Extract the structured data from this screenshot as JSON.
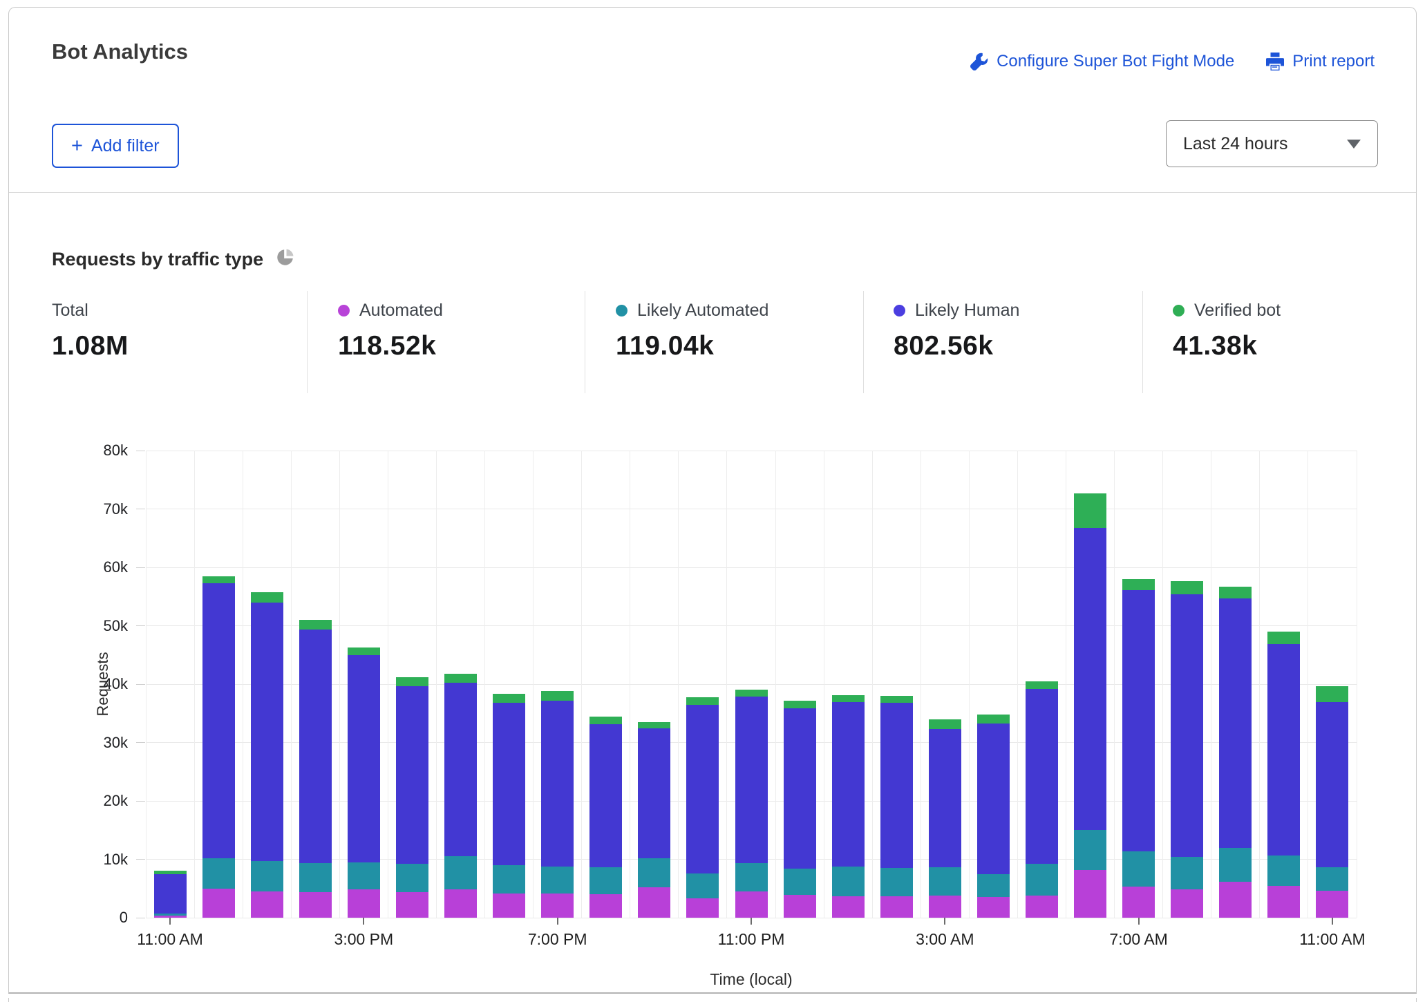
{
  "header": {
    "title": "Bot Analytics",
    "configure_link": "Configure Super Bot Fight Mode",
    "print_link": "Print report"
  },
  "filters": {
    "add_filter_label": "Add filter",
    "add_filter_plus": "+",
    "time_range_value": "Last 24 hours"
  },
  "section": {
    "title": "Requests by traffic type"
  },
  "stats": {
    "items": [
      {
        "label": "Total",
        "value": "1.08M",
        "dot_color": null
      },
      {
        "label": "Automated",
        "value": "118.52k",
        "dot_color": "#b843d8"
      },
      {
        "label": "Likely Automated",
        "value": "119.04k",
        "dot_color": "#2191a5"
      },
      {
        "label": "Likely Human",
        "value": "802.56k",
        "dot_color": "#4b3ee0"
      },
      {
        "label": "Verified bot",
        "value": "41.38k",
        "dot_color": "#2fae55"
      }
    ]
  },
  "chart_data": {
    "type": "bar",
    "stacked": true,
    "title": "Requests by traffic type",
    "xlabel": "Time (local)",
    "ylabel": "Requests",
    "ylim": [
      0,
      80000
    ],
    "grid": true,
    "unit": "thousands of requests",
    "yticks": [
      "0",
      "10k",
      "20k",
      "30k",
      "40k",
      "50k",
      "60k",
      "70k",
      "80k"
    ],
    "tick_every": 4,
    "x": [
      "11:00 AM",
      "12:00 PM",
      "1:00 PM",
      "2:00 PM",
      "3:00 PM",
      "4:00 PM",
      "5:00 PM",
      "6:00 PM",
      "7:00 PM",
      "8:00 PM",
      "9:00 PM",
      "10:00 PM",
      "11:00 PM",
      "12:00 AM",
      "1:00 AM",
      "2:00 AM",
      "3:00 AM",
      "4:00 AM",
      "5:00 AM",
      "6:00 AM",
      "7:00 AM",
      "8:00 AM",
      "9:00 AM",
      "10:00 AM",
      "11:00 AM"
    ],
    "series": [
      {
        "name": "Automated",
        "color": "#b840d8",
        "values": [
          0.3,
          5.0,
          4.5,
          4.4,
          4.8,
          4.4,
          4.8,
          4.1,
          4.2,
          4.0,
          5.2,
          3.3,
          4.5,
          3.9,
          3.7,
          3.7,
          3.8,
          3.6,
          3.8,
          8.2,
          5.3,
          4.9,
          6.1,
          5.4,
          4.6
        ]
      },
      {
        "name": "Likely Automated",
        "color": "#2191a5",
        "values": [
          0.45,
          5.2,
          5.2,
          4.9,
          4.7,
          4.8,
          5.7,
          4.9,
          4.6,
          4.6,
          5.0,
          4.3,
          4.8,
          4.5,
          5.1,
          4.8,
          4.8,
          3.8,
          5.4,
          6.8,
          6.1,
          5.5,
          5.9,
          5.2,
          4.1
        ]
      },
      {
        "name": "Likely Human",
        "color": "#4338d2",
        "values": [
          6.75,
          47.1,
          44.3,
          40.0,
          35.5,
          30.5,
          29.7,
          27.8,
          28.4,
          24.5,
          22.2,
          28.9,
          28.6,
          27.5,
          28.1,
          28.3,
          23.7,
          25.9,
          30.0,
          51.7,
          44.7,
          45.0,
          42.7,
          36.3,
          28.2
        ]
      },
      {
        "name": "Verified bot",
        "color": "#2eaf56",
        "values": [
          0.5,
          1.2,
          1.7,
          1.7,
          1.3,
          1.5,
          1.6,
          1.6,
          1.6,
          1.3,
          1.1,
          1.3,
          1.2,
          1.3,
          1.2,
          1.2,
          1.7,
          1.5,
          1.3,
          6.0,
          1.9,
          2.2,
          2.0,
          2.1,
          2.7
        ]
      }
    ],
    "totals_legend": {
      "total": "1.08M",
      "automated": "118.52k",
      "likely_automated": "119.04k",
      "likely_human": "802.56k",
      "verified_bot": "41.38k"
    }
  }
}
